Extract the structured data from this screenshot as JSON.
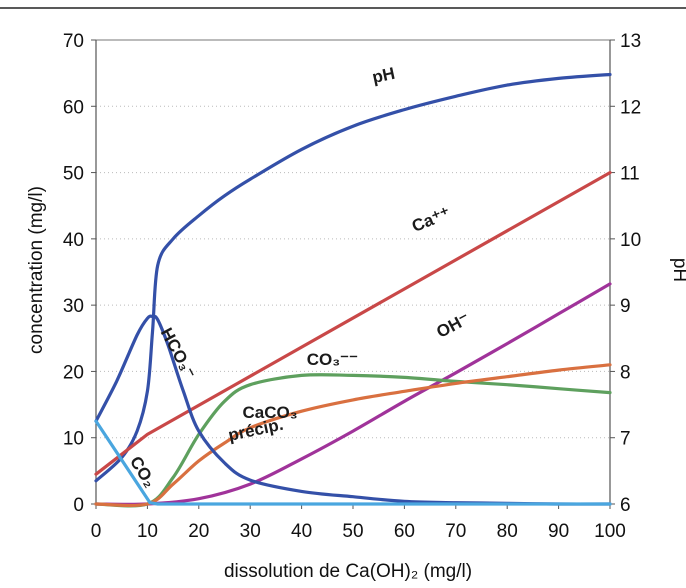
{
  "chart_data": {
    "type": "line",
    "xlabel": "dissolution de Ca(OH)₂ (mg/l)",
    "ylabel_left": "concentration (mg/l)",
    "ylabel_right": "pH",
    "x_range": [
      0,
      100
    ],
    "y_left_range": [
      0,
      70
    ],
    "y_right_range": [
      6,
      13
    ],
    "x_ticks": [
      "0",
      "10",
      "20",
      "30",
      "40",
      "50",
      "60",
      "70",
      "80",
      "90",
      "100"
    ],
    "y_left_ticks": [
      "0",
      "10",
      "20",
      "30",
      "40",
      "50",
      "60",
      "70"
    ],
    "y_right_ticks": [
      "6",
      "7",
      "8",
      "9",
      "10",
      "11",
      "12",
      "13"
    ],
    "grid": "horizontal",
    "series": [
      {
        "name": "pH",
        "axis": "right",
        "color": "#3450a8",
        "x": [
          0,
          5,
          8,
          10,
          11,
          12,
          15,
          20,
          25,
          30,
          40,
          50,
          60,
          70,
          80,
          90,
          100
        ],
        "y": [
          6.35,
          6.7,
          7.1,
          7.7,
          8.6,
          9.6,
          10.0,
          10.35,
          10.65,
          10.9,
          11.35,
          11.7,
          11.95,
          12.15,
          12.32,
          12.42,
          12.48
        ]
      },
      {
        "name": "Ca⁺⁺",
        "axis": "left",
        "color": "#c94848",
        "x": [
          0,
          10,
          100
        ],
        "y": [
          4.5,
          10.5,
          50
        ]
      },
      {
        "name": "OH⁻",
        "axis": "left",
        "color": "#a0339a",
        "x": [
          0,
          10,
          20,
          30,
          40,
          50,
          60,
          70,
          80,
          90,
          100
        ],
        "y": [
          0,
          0,
          0.8,
          3.0,
          6.8,
          11.0,
          15.5,
          19.8,
          24.2,
          28.7,
          33.2
        ]
      },
      {
        "name": "CO₃⁻⁻",
        "axis": "left",
        "color": "#5ea05e",
        "x": [
          0,
          10,
          15,
          20,
          25,
          30,
          40,
          50,
          60,
          70,
          80,
          90,
          100
        ],
        "y": [
          0,
          0,
          4,
          10.5,
          15.5,
          18,
          19.4,
          19.4,
          19.1,
          18.5,
          18,
          17.4,
          16.8
        ]
      },
      {
        "name": "CaCO₃ précip.",
        "axis": "left",
        "color": "#d97040",
        "x": [
          0,
          10,
          15,
          20,
          25,
          30,
          40,
          50,
          60,
          70,
          80,
          90,
          100
        ],
        "y": [
          0,
          0,
          3,
          6.5,
          9.2,
          11.5,
          14,
          15.7,
          17,
          18.2,
          19.2,
          20.2,
          21
        ]
      },
      {
        "name": "HCO₃⁻",
        "axis": "left",
        "color": "#3450a8",
        "x": [
          0,
          4,
          8,
          10,
          11,
          12,
          14,
          17,
          20,
          25,
          30,
          40,
          50,
          60,
          70,
          80,
          90,
          100
        ],
        "y": [
          12.5,
          18.5,
          25.5,
          28,
          28.3,
          27.8,
          24,
          17,
          11,
          6.2,
          3.6,
          1.9,
          1.1,
          0.4,
          0.2,
          0.1,
          0,
          0
        ]
      },
      {
        "name": "CO₂",
        "axis": "left",
        "color": "#4aa6df",
        "x": [
          0,
          10.5,
          12,
          100
        ],
        "y": [
          12.5,
          0.2,
          0,
          0
        ]
      }
    ],
    "annotations": [
      {
        "text": "pH",
        "series": "pH"
      },
      {
        "text": "Ca⁺⁺",
        "series": "Ca⁺⁺"
      },
      {
        "text": "OH⁻",
        "series": "OH⁻"
      },
      {
        "text": "CO₃⁻⁻",
        "series": "CO₃⁻⁻"
      },
      {
        "text": "CaCO₃",
        "series": "CaCO₃ précip."
      },
      {
        "text": "précip.",
        "series": "CaCO₃ précip."
      },
      {
        "text": "HCO₃⁻",
        "series": "HCO₃⁻"
      },
      {
        "text": "CO₂",
        "series": "CO₂"
      }
    ]
  }
}
